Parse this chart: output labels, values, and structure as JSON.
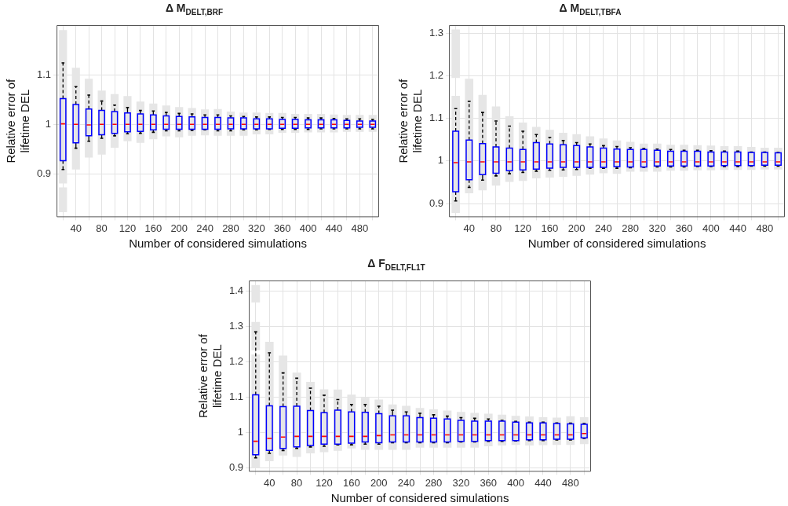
{
  "chart_data": [
    {
      "type": "box",
      "title": "Δ M$_{DELT,BRF}$",
      "xlabel": "Number of considered simulations",
      "ylabel": "Relative error of lifetime DEL",
      "categories": [
        null,
        "40",
        null,
        "80",
        null,
        "120",
        null,
        "160",
        null,
        "200",
        null,
        "240",
        null,
        "280",
        null,
        "320",
        null,
        "360",
        null,
        "400",
        null,
        "440",
        null,
        "480",
        null
      ],
      "ylim": [
        0.813,
        1.2
      ],
      "yticks": [
        0.9,
        1,
        1.1
      ],
      "grid": true,
      "series": [
        {
          "type": "bar",
          "color": "#e6e6e6",
          "base": [
            0.881,
            0.909,
            0.933,
            0.939,
            0.953,
            0.966,
            0.963,
            0.97,
            0.976,
            0.974,
            0.977,
            0.978,
            0.977,
            0.977,
            0.977,
            0.98,
            0.98,
            0.983,
            0.983,
            0.984,
            0.984,
            0.984,
            0.985,
            0.985,
            0.985
          ],
          "values": [
            0.309,
            0.205,
            0.159,
            0.129,
            0.108,
            0.091,
            0.083,
            0.072,
            0.062,
            0.061,
            0.056,
            0.052,
            0.054,
            0.049,
            0.047,
            0.044,
            0.043,
            0.04,
            0.038,
            0.037,
            0.037,
            0.036,
            0.034,
            0.034,
            0.034
          ]
        },
        {
          "type": "bar",
          "color": "#e6e6e6",
          "base": [
            0.823,
            null,
            null,
            null,
            null,
            null,
            null,
            null,
            null,
            null,
            null,
            null,
            null,
            null,
            null,
            null,
            null,
            null,
            null,
            null,
            null,
            null,
            null,
            null,
            null
          ],
          "values": [
            0.05,
            null,
            null,
            null,
            null,
            null,
            null,
            null,
            null,
            null,
            null,
            null,
            null,
            null,
            null,
            null,
            null,
            null,
            null,
            null,
            null,
            null,
            null,
            null,
            null
          ]
        },
        {
          "type": "box",
          "color": "#0000ff",
          "boxes": [
            {
              "low": 0.909,
              "q1": 0.927,
              "median": 1.001,
              "q3": 1.052,
              "high": 1.124
            },
            {
              "low": 0.952,
              "q1": 0.963,
              "median": 1.0,
              "q3": 1.04,
              "high": 1.076
            },
            {
              "low": 0.966,
              "q1": 0.977,
              "median": 0.999,
              "q3": 1.031,
              "high": 1.059
            },
            {
              "low": 0.972,
              "q1": 0.979,
              "median": 1.0,
              "q3": 1.028,
              "high": 1.047
            },
            {
              "low": 0.977,
              "q1": 0.982,
              "median": 1.0,
              "q3": 1.026,
              "high": 1.039
            },
            {
              "low": 0.981,
              "q1": 0.985,
              "median": 1.0,
              "q3": 1.023,
              "high": 1.034
            },
            {
              "low": 0.982,
              "q1": 0.986,
              "median": 1.0,
              "q3": 1.021,
              "high": 1.028
            },
            {
              "low": 0.984,
              "q1": 0.989,
              "median": 1.0,
              "q3": 1.019,
              "high": 1.027
            },
            {
              "low": 0.987,
              "q1": 0.99,
              "median": 1.0,
              "q3": 1.017,
              "high": 1.024
            },
            {
              "low": 0.987,
              "q1": 0.99,
              "median": 1.0,
              "q3": 1.016,
              "high": 1.022
            },
            {
              "low": 0.988,
              "q1": 0.99,
              "median": 1.0,
              "q3": 1.015,
              "high": 1.021
            },
            {
              "low": 0.989,
              "q1": 0.99,
              "median": 1.0,
              "q3": 1.014,
              "high": 1.019
            },
            {
              "low": 0.987,
              "q1": 0.99,
              "median": 1.0,
              "q3": 1.014,
              "high": 1.019
            },
            {
              "low": 0.987,
              "q1": 0.991,
              "median": 1.0,
              "q3": 1.013,
              "high": 1.017
            },
            {
              "low": 0.989,
              "q1": 0.991,
              "median": 1.0,
              "q3": 1.013,
              "high": 1.016
            },
            {
              "low": 0.989,
              "q1": 0.991,
              "median": 1.0,
              "q3": 1.011,
              "high": 1.015
            },
            {
              "low": 0.99,
              "q1": 0.991,
              "median": 1.0,
              "q3": 1.011,
              "high": 1.015
            },
            {
              "low": 0.99,
              "q1": 0.992,
              "median": 1.0,
              "q3": 1.01,
              "high": 1.014
            },
            {
              "low": 0.99,
              "q1": 0.992,
              "median": 1.0,
              "q3": 1.01,
              "high": 1.014
            },
            {
              "low": 0.99,
              "q1": 0.993,
              "median": 1.0,
              "q3": 1.009,
              "high": 1.013
            },
            {
              "low": 0.991,
              "q1": 0.993,
              "median": 1.0,
              "q3": 1.009,
              "high": 1.013
            },
            {
              "low": 0.991,
              "q1": 0.993,
              "median": 1.0,
              "q3": 1.009,
              "high": 1.012
            },
            {
              "low": 0.991,
              "q1": 0.993,
              "median": 1.0,
              "q3": 1.008,
              "high": 1.011
            },
            {
              "low": 0.991,
              "q1": 0.994,
              "median": 1.0,
              "q3": 1.007,
              "high": 1.011
            },
            {
              "low": 0.991,
              "q1": 0.994,
              "median": 1.0,
              "q3": 1.007,
              "high": 1.01
            }
          ]
        }
      ]
    },
    {
      "type": "box",
      "title": "Δ M$_{DELT,TBFA}$",
      "xlabel": "Number of considered simulations",
      "ylabel": "Relative error of lifetime DEL",
      "categories": [
        null,
        "40",
        null,
        "80",
        null,
        "120",
        null,
        "160",
        null,
        "200",
        null,
        "240",
        null,
        "280",
        null,
        "320",
        null,
        "360",
        null,
        "400",
        null,
        "440",
        null,
        "480",
        null
      ],
      "ylim": [
        0.868,
        1.319
      ],
      "yticks": [
        0.9,
        1,
        1.1,
        1.2,
        1.3
      ],
      "grid": true,
      "series": [
        {
          "type": "bar",
          "color": "#e6e6e6",
          "base": [
            0.878,
            0.924,
            0.931,
            0.942,
            0.951,
            0.953,
            0.959,
            0.961,
            0.963,
            0.965,
            0.968,
            0.971,
            0.97,
            0.975,
            0.975,
            0.975,
            0.977,
            0.977,
            0.978,
            0.978,
            0.979,
            0.979,
            0.979,
            0.98,
            0.98
          ],
          "values": [
            0.275,
            0.269,
            0.224,
            0.186,
            0.154,
            0.137,
            0.121,
            0.112,
            0.103,
            0.098,
            0.09,
            0.082,
            0.078,
            0.07,
            0.066,
            0.066,
            0.061,
            0.061,
            0.059,
            0.058,
            0.056,
            0.056,
            0.054,
            0.051,
            0.051
          ]
        },
        {
          "type": "bar",
          "color": "#e6e6e6",
          "base": [
            1.195,
            null,
            null,
            null,
            null,
            null,
            null,
            null,
            null,
            null,
            null,
            null,
            null,
            null,
            null,
            null,
            null,
            null,
            null,
            null,
            null,
            null,
            null,
            null,
            null
          ],
          "values": [
            0.114,
            null,
            null,
            null,
            null,
            null,
            null,
            null,
            null,
            null,
            null,
            null,
            null,
            null,
            null,
            null,
            null,
            null,
            null,
            null,
            null,
            null,
            null,
            null,
            null
          ]
        },
        {
          "type": "box",
          "color": "#0000ff",
          "boxes": [
            {
              "low": 0.906,
              "q1": 0.928,
              "median": 0.996,
              "q3": 1.07,
              "high": 1.123
            },
            {
              "low": 0.938,
              "q1": 0.956,
              "median": 0.998,
              "q3": 1.049,
              "high": 1.14
            },
            {
              "low": 0.955,
              "q1": 0.968,
              "median": 0.998,
              "q3": 1.041,
              "high": 1.114
            },
            {
              "low": 0.965,
              "q1": 0.971,
              "median": 0.998,
              "q3": 1.033,
              "high": 1.094
            },
            {
              "low": 0.97,
              "q1": 0.977,
              "median": 0.998,
              "q3": 1.03,
              "high": 1.082
            },
            {
              "low": 0.973,
              "q1": 0.979,
              "median": 0.998,
              "q3": 1.027,
              "high": 1.07
            },
            {
              "low": 0.976,
              "q1": 0.981,
              "median": 0.998,
              "q3": 1.043,
              "high": 1.062
            },
            {
              "low": 0.978,
              "q1": 0.983,
              "median": 0.998,
              "q3": 1.04,
              "high": 1.055
            },
            {
              "low": 0.979,
              "q1": 0.985,
              "median": 0.998,
              "q3": 1.038,
              "high": 1.048
            },
            {
              "low": 0.98,
              "q1": 0.985,
              "median": 0.998,
              "q3": 1.036,
              "high": 1.043
            },
            {
              "low": 0.983,
              "q1": 0.985,
              "median": 0.998,
              "q3": 1.033,
              "high": 1.04
            },
            {
              "low": 0.983,
              "q1": 0.985,
              "median": 0.998,
              "q3": 1.03,
              "high": 1.036
            },
            {
              "low": 0.983,
              "q1": 0.987,
              "median": 0.998,
              "q3": 1.028,
              "high": 1.034
            },
            {
              "low": 0.984,
              "q1": 0.986,
              "median": 0.998,
              "q3": 1.027,
              "high": 1.031
            },
            {
              "low": 0.985,
              "q1": 0.986,
              "median": 0.998,
              "q3": 1.027,
              "high": 1.029
            },
            {
              "low": 0.986,
              "q1": 0.988,
              "median": 0.998,
              "q3": 1.025,
              "high": 1.028
            },
            {
              "low": 0.986,
              "q1": 0.988,
              "median": 0.998,
              "q3": 1.023,
              "high": 1.027
            },
            {
              "low": 0.986,
              "q1": 0.988,
              "median": 0.998,
              "q3": 1.023,
              "high": 1.025
            },
            {
              "low": 0.987,
              "q1": 0.988,
              "median": 0.998,
              "q3": 1.023,
              "high": 1.025
            },
            {
              "low": 0.987,
              "q1": 0.988,
              "median": 0.998,
              "q3": 1.021,
              "high": 1.024
            },
            {
              "low": 0.987,
              "q1": 0.989,
              "median": 0.998,
              "q3": 1.021,
              "high": 1.023
            },
            {
              "low": 0.987,
              "q1": 0.989,
              "median": 0.998,
              "q3": 1.021,
              "high": 1.023
            },
            {
              "low": 0.988,
              "q1": 0.989,
              "median": 0.998,
              "q3": 1.02,
              "high": 1.021
            },
            {
              "low": 0.988,
              "q1": 0.99,
              "median": 0.998,
              "q3": 1.02,
              "high": 1.021
            },
            {
              "low": 0.988,
              "q1": 0.99,
              "median": 0.998,
              "q3": 1.019,
              "high": 1.02
            }
          ]
        }
      ]
    },
    {
      "type": "box",
      "title": "Δ F$_{DELT,FL1T}$",
      "xlabel": "Number of considered simulations",
      "ylabel": "Relative error of lifetime DEL",
      "categories": [
        null,
        "40",
        null,
        "80",
        null,
        "120",
        null,
        "160",
        null,
        "200",
        null,
        "240",
        null,
        "280",
        null,
        "320",
        null,
        "360",
        null,
        "400",
        null,
        "440",
        null,
        "480",
        null
      ],
      "ylim": [
        0.89,
        1.43
      ],
      "yticks": [
        0.9,
        1,
        1.1,
        1.2,
        1.3,
        1.4
      ],
      "grid": true,
      "series": [
        {
          "type": "bar",
          "color": "#e6e6e6",
          "base": [
            0.9,
            0.92,
            0.936,
            0.932,
            0.942,
            0.945,
            0.949,
            0.956,
            0.952,
            0.952,
            0.952,
            0.952,
            0.958,
            0.958,
            0.958,
            0.958,
            0.958,
            0.962,
            0.964,
            0.966,
            0.964,
            0.965,
            0.966,
            0.966,
            0.968
          ],
          "values": [
            0.321,
            0.337,
            0.282,
            0.238,
            0.202,
            0.178,
            0.173,
            0.152,
            0.147,
            0.142,
            0.128,
            0.124,
            0.112,
            0.108,
            0.105,
            0.101,
            0.098,
            0.092,
            0.087,
            0.082,
            0.082,
            0.079,
            0.077,
            0.081,
            0.076
          ]
        },
        {
          "type": "bar",
          "color": "#e6e6e6",
          "base": [
            1.233,
            null,
            null,
            null,
            null,
            null,
            null,
            null,
            null,
            null,
            null,
            null,
            null,
            null,
            null,
            null,
            null,
            null,
            null,
            null,
            null,
            null,
            null,
            null,
            null
          ],
          "values": [
            0.08,
            null,
            null,
            null,
            null,
            null,
            null,
            null,
            null,
            null,
            null,
            null,
            null,
            null,
            null,
            null,
            null,
            null,
            null,
            null,
            null,
            null,
            null,
            null,
            null
          ]
        },
        {
          "type": "bar",
          "color": "#e6e6e6",
          "base": [
            1.368,
            null,
            null,
            null,
            null,
            null,
            null,
            null,
            null,
            null,
            null,
            null,
            null,
            null,
            null,
            null,
            null,
            null,
            null,
            null,
            null,
            null,
            null,
            null,
            null
          ],
          "values": [
            0.049,
            null,
            null,
            null,
            null,
            null,
            null,
            null,
            null,
            null,
            null,
            null,
            null,
            null,
            null,
            null,
            null,
            null,
            null,
            null,
            null,
            null,
            null,
            null,
            null
          ]
        },
        {
          "type": "box",
          "color": "#0000ff",
          "boxes": [
            {
              "low": 0.929,
              "q1": 0.938,
              "median": 0.976,
              "q3": 1.107,
              "high": 1.285
            },
            {
              "low": 0.942,
              "q1": 0.95,
              "median": 0.984,
              "q3": 1.076,
              "high": 1.226
            },
            {
              "low": 0.95,
              "q1": 0.956,
              "median": 0.988,
              "q3": 1.074,
              "high": 1.169
            },
            {
              "low": 0.956,
              "q1": 0.96,
              "median": 0.99,
              "q3": 1.075,
              "high": 1.154
            },
            {
              "low": 0.96,
              "q1": 0.964,
              "median": 0.99,
              "q3": 1.063,
              "high": 1.126
            },
            {
              "low": 0.962,
              "q1": 0.968,
              "median": 0.99,
              "q3": 1.057,
              "high": 1.106
            },
            {
              "low": 0.966,
              "q1": 0.968,
              "median": 0.99,
              "q3": 1.064,
              "high": 1.094
            },
            {
              "low": 0.966,
              "q1": 0.971,
              "median": 0.99,
              "q3": 1.059,
              "high": 1.08
            },
            {
              "low": 0.968,
              "q1": 0.974,
              "median": 0.99,
              "q3": 1.058,
              "high": 1.08
            },
            {
              "low": 0.968,
              "q1": 0.972,
              "median": 0.992,
              "q3": 1.054,
              "high": 1.075
            },
            {
              "low": 0.972,
              "q1": 0.974,
              "median": 0.994,
              "q3": 1.048,
              "high": 1.064
            },
            {
              "low": 0.972,
              "q1": 0.974,
              "median": 0.994,
              "q3": 1.048,
              "high": 1.059
            },
            {
              "low": 0.972,
              "q1": 0.974,
              "median": 0.994,
              "q3": 1.043,
              "high": 1.055
            },
            {
              "low": 0.972,
              "q1": 0.974,
              "median": 0.994,
              "q3": 1.041,
              "high": 1.051
            },
            {
              "low": 0.972,
              "q1": 0.974,
              "median": 0.994,
              "q3": 1.039,
              "high": 1.047
            },
            {
              "low": 0.974,
              "q1": 0.976,
              "median": 0.994,
              "q3": 1.035,
              "high": 1.043
            },
            {
              "low": 0.974,
              "q1": 0.976,
              "median": 0.994,
              "q3": 1.033,
              "high": 1.041
            },
            {
              "low": 0.976,
              "q1": 0.978,
              "median": 0.994,
              "q3": 1.033,
              "high": 1.039
            },
            {
              "low": 0.976,
              "q1": 0.978,
              "median": 0.994,
              "q3": 1.033,
              "high": 1.035
            },
            {
              "low": 0.977,
              "q1": 0.978,
              "median": 0.994,
              "q3": 1.03,
              "high": 1.032
            },
            {
              "low": 0.978,
              "q1": 0.98,
              "median": 0.994,
              "q3": 1.028,
              "high": 1.03
            },
            {
              "low": 0.978,
              "q1": 0.98,
              "median": 0.994,
              "q3": 1.028,
              "high": 1.03
            },
            {
              "low": 0.98,
              "q1": 0.982,
              "median": 0.994,
              "q3": 1.026,
              "high": 1.028
            },
            {
              "low": 0.98,
              "q1": 0.982,
              "median": 0.994,
              "q3": 1.025,
              "high": 1.027
            },
            {
              "low": 0.984,
              "q1": 0.986,
              "median": 0.998,
              "q3": 1.024,
              "high": 1.026
            }
          ]
        }
      ]
    }
  ]
}
